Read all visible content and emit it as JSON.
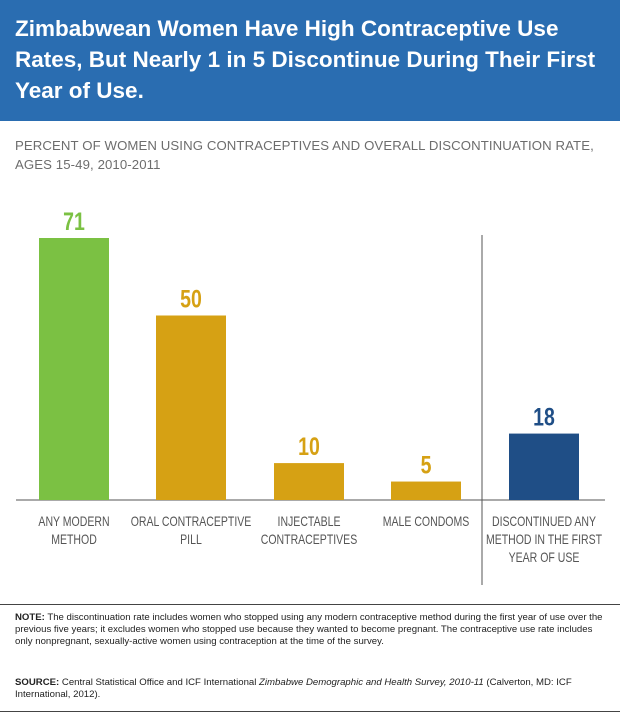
{
  "header": {
    "title": "Zimbabwean Women Have High Contraceptive Use Rates, But Nearly 1 in 5 Discontinue During Their First Year of Use."
  },
  "subtitle": "PERCENT OF WOMEN USING CONTRACEPTIVES AND OVERALL DISCONTINUATION RATE, AGES 15-49, 2010-2011",
  "colors": {
    "header_bg": "#2a6db1",
    "green": "#7bc143",
    "gold": "#d6a114",
    "navy": "#1f4e86"
  },
  "chart_data": {
    "type": "bar",
    "categories": [
      [
        "ANY MODERN",
        "METHOD"
      ],
      [
        "ORAL CONTRACEPTIVE",
        "PILL"
      ],
      [
        "INJECTABLE",
        "CONTRACEPTIVES"
      ],
      [
        "MALE CONDOMS"
      ],
      [
        "DISCONTINUED ANY",
        "METHOD IN THE FIRST",
        "YEAR OF USE"
      ]
    ],
    "values": [
      71,
      50,
      10,
      5,
      18
    ],
    "bar_colors": [
      "#7bc143",
      "#d6a114",
      "#d6a114",
      "#d6a114",
      "#1f4e86"
    ],
    "ylim": [
      0,
      71
    ],
    "xlabel": "",
    "ylabel": "",
    "grid": false,
    "separator_before_index": 4
  },
  "footer": {
    "note_label": "NOTE:",
    "note_text": " The discontinuation rate includes women who stopped using any modern contraceptive method during the first year of use over the previous five years; it excludes women who stopped use because they wanted to become pregnant. The contraceptive use rate includes only nonpregnant, sexually-active women using contraception at the time of the survey.",
    "source_label": "SOURCE:",
    "source_text_1": " Central Statistical Office and ICF International ",
    "source_italic": "Zimbabwe Demographic and Health Survey, 2010-11",
    "source_text_2": " (Calverton, MD: ICF International, 2012)."
  }
}
